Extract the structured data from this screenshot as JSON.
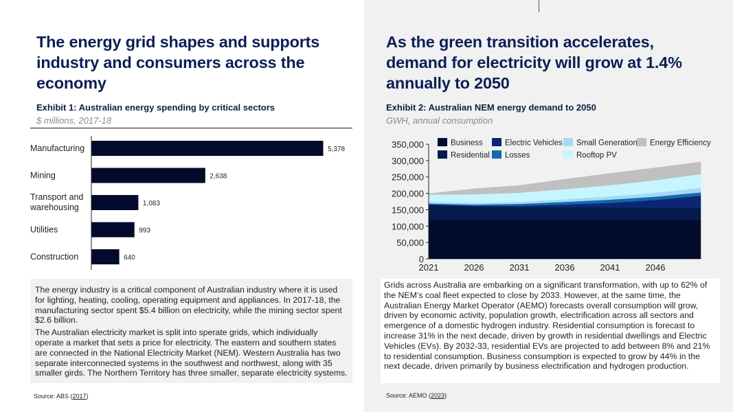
{
  "left": {
    "title": "The energy grid shapes and supports industry and consumers across the economy",
    "exhibit_title": "Exhibit 1: Australian energy spending by critical sectors",
    "exhibit_subtitle": "$ millions, 2017-18",
    "paragraphs": [
      "The energy industry is a critical component of Australian industry where it is used for lighting, heating, cooling, operating equipment and appliances. In 2017-18, the manufacturing sector spent $5.4 billion on electricity, while the mining sector spent $2.6 billion.",
      "The Australian electricity market is split into sperate grids, which individually operate a market that sets a price for electricity. The eastern and southern states are connected in the National Electricity Market (NEM). Western Australia has two separate interconnected systems in the southwest and northwest, along with 35 smaller girds. The Northern Territory has three smaller, separate electricity systems."
    ],
    "source_prefix": "Source: ABS (",
    "source_link": "2017",
    "source_suffix": ")"
  },
  "right": {
    "title": "As the green transition accelerates, demand for electricity will grow at 1.4% annually to 2050",
    "exhibit_title": "Exhibit 2: Australian NEM energy demand to 2050",
    "exhibit_subtitle": "GWH, annual consumption",
    "paragraph": "Grids across Australia are embarking on a significant transformation, with up to 62% of the NEM’s coal fleet expected to close by 2033. However, at the same time, the Australian Energy Market Operator (AEMO) forecasts overall consumption will grow, driven by economic activity, population growth, electrification across all sectors and emergence of a domestic hydrogen industry. Residential consumption is forecast to increase 31% in the next decade, driven by growth in residential dwellings and Electric Vehicles (EVs). By 2032-33, residential EVs are projected to add between 8% and 21% to residential consumption. Business consumption is expected to grow by 44% in the next decade, driven primarily by business electrification and hydrogen production.",
    "source_prefix": "Source: AEMO (",
    "source_link": "2023",
    "source_suffix": ")"
  },
  "chart_data": [
    {
      "type": "bar",
      "orientation": "horizontal",
      "title": "Exhibit 1: Australian energy spending by critical sectors",
      "subtitle": "$ millions, 2017-18",
      "categories": [
        "Manufacturing",
        "Mining",
        "Transport and warehousing",
        "Utilities",
        "Construction"
      ],
      "category_lines": [
        [
          "Manufacturing"
        ],
        [
          "Mining"
        ],
        [
          "Transport and",
          "warehousing"
        ],
        [
          "Utilities"
        ],
        [
          "Construction"
        ]
      ],
      "values": [
        5378,
        2638,
        1083,
        993,
        640
      ],
      "value_labels": [
        "5,378",
        "2,638",
        "1,083",
        "993",
        "640"
      ],
      "bar_color": "#020b2b",
      "xlim": [
        0,
        5378
      ],
      "grid": false
    },
    {
      "type": "area",
      "stacked": true,
      "title": "Exhibit 2: Australian NEM energy demand to 2050",
      "subtitle": "GWH, annual consumption",
      "x": [
        2021,
        2026,
        2031,
        2036,
        2041,
        2046,
        2050
      ],
      "x_ticks": [
        "2021",
        "2026",
        "2031",
        "2036",
        "2041",
        "2046"
      ],
      "y_ticks": [
        "0",
        "50,000",
        "100,000",
        "150,000",
        "200,000",
        "250,000",
        "300,000",
        "350,000"
      ],
      "ylim": [
        0,
        350000
      ],
      "legend_position": "top",
      "grid": false,
      "series": [
        {
          "name": "Business",
          "color": "#020b2b",
          "values": [
            120000,
            120000,
            120000,
            120000,
            120000,
            119000,
            118000
          ]
        },
        {
          "name": "Residential",
          "color": "#061a4d",
          "values": [
            45000,
            40000,
            38000,
            38000,
            37000,
            37000,
            37000
          ]
        },
        {
          "name": "Electric Vehicles",
          "color": "#0c2675",
          "values": [
            1000,
            2000,
            4000,
            8000,
            14000,
            24000,
            38000
          ]
        },
        {
          "name": "Losses",
          "color": "#1569a8",
          "values": [
            3000,
            4000,
            6000,
            8000,
            10000,
            10000,
            10000
          ]
        },
        {
          "name": "Small Generation",
          "color": "#a5d9f5",
          "values": [
            5000,
            5000,
            6000,
            8000,
            10000,
            12000,
            14000
          ]
        },
        {
          "name": "Rooftop PV",
          "color": "#c5f6ff",
          "values": [
            22000,
            26000,
            28000,
            31000,
            34000,
            38000,
            42000
          ]
        },
        {
          "name": "Energy Efficiency",
          "color": "#c0c0c0",
          "values": [
            3000,
            17000,
            22000,
            30000,
            36000,
            38000,
            37000
          ]
        }
      ],
      "legend_order": [
        "Business",
        "Electric Vehicles",
        "Small Generation",
        "Energy Efficiency",
        "Residential",
        "Losses",
        "Rooftop PV"
      ]
    }
  ]
}
